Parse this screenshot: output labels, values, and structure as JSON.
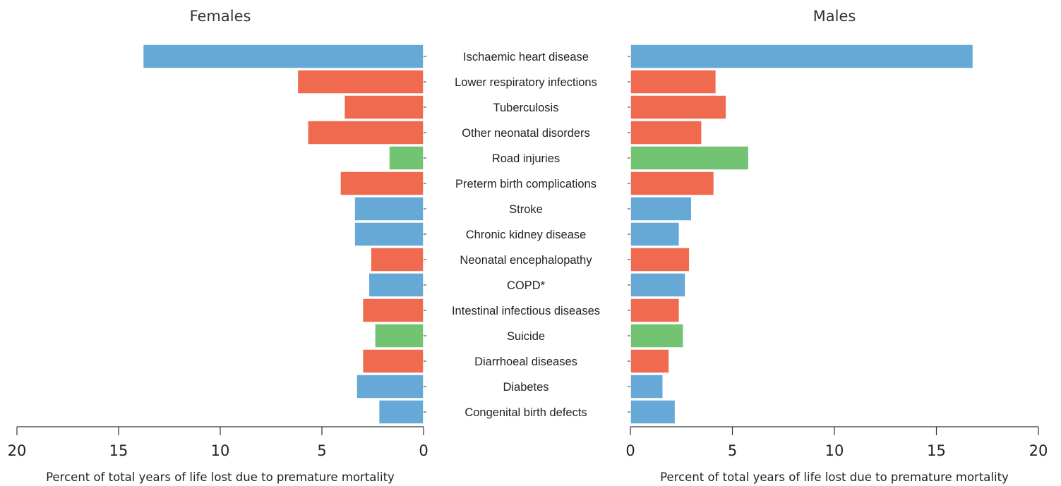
{
  "colors": {
    "cardiovascular": "#67a9d6",
    "infectious": "#ef6a4e",
    "injury": "#72c372"
  },
  "chart_data": {
    "type": "bar",
    "orientation": "horizontal",
    "categories": [
      "Ischaemic heart disease",
      "Lower respiratory infections",
      "Tuberculosis",
      "Other neonatal disorders",
      "Road injuries",
      "Preterm birth complications",
      "Stroke",
      "Chronic kidney disease",
      "Neonatal encephalopathy",
      "COPD*",
      "Intestinal infectious diseases",
      "Suicide",
      "Diarrhoeal diseases",
      "Diabetes",
      "Congenital birth defects"
    ],
    "category_group": [
      "cardiovascular",
      "infectious",
      "infectious",
      "infectious",
      "injury",
      "infectious",
      "cardiovascular",
      "cardiovascular",
      "infectious",
      "cardiovascular",
      "infectious",
      "injury",
      "infectious",
      "cardiovascular",
      "cardiovascular"
    ],
    "panels": [
      {
        "title": "Females",
        "direction": "left",
        "xlabel": "Percent of total years of life lost due to premature mortality",
        "xlim": [
          0,
          20
        ],
        "xticks": [
          0,
          5,
          10,
          15,
          20
        ],
        "values": [
          13.8,
          6.2,
          3.9,
          5.7,
          1.7,
          4.1,
          3.4,
          3.4,
          2.6,
          2.7,
          3.0,
          2.4,
          3.0,
          3.3,
          2.2
        ]
      },
      {
        "title": "Males",
        "direction": "right",
        "xlabel": "Percent of total years of life lost due to premature mortality",
        "xlim": [
          0,
          20
        ],
        "xticks": [
          0,
          5,
          10,
          15,
          20
        ],
        "values": [
          16.8,
          4.2,
          4.7,
          3.5,
          5.8,
          4.1,
          3.0,
          2.4,
          2.9,
          2.7,
          2.4,
          2.6,
          1.9,
          1.6,
          2.2
        ]
      }
    ],
    "grid": false,
    "legend": "none"
  }
}
